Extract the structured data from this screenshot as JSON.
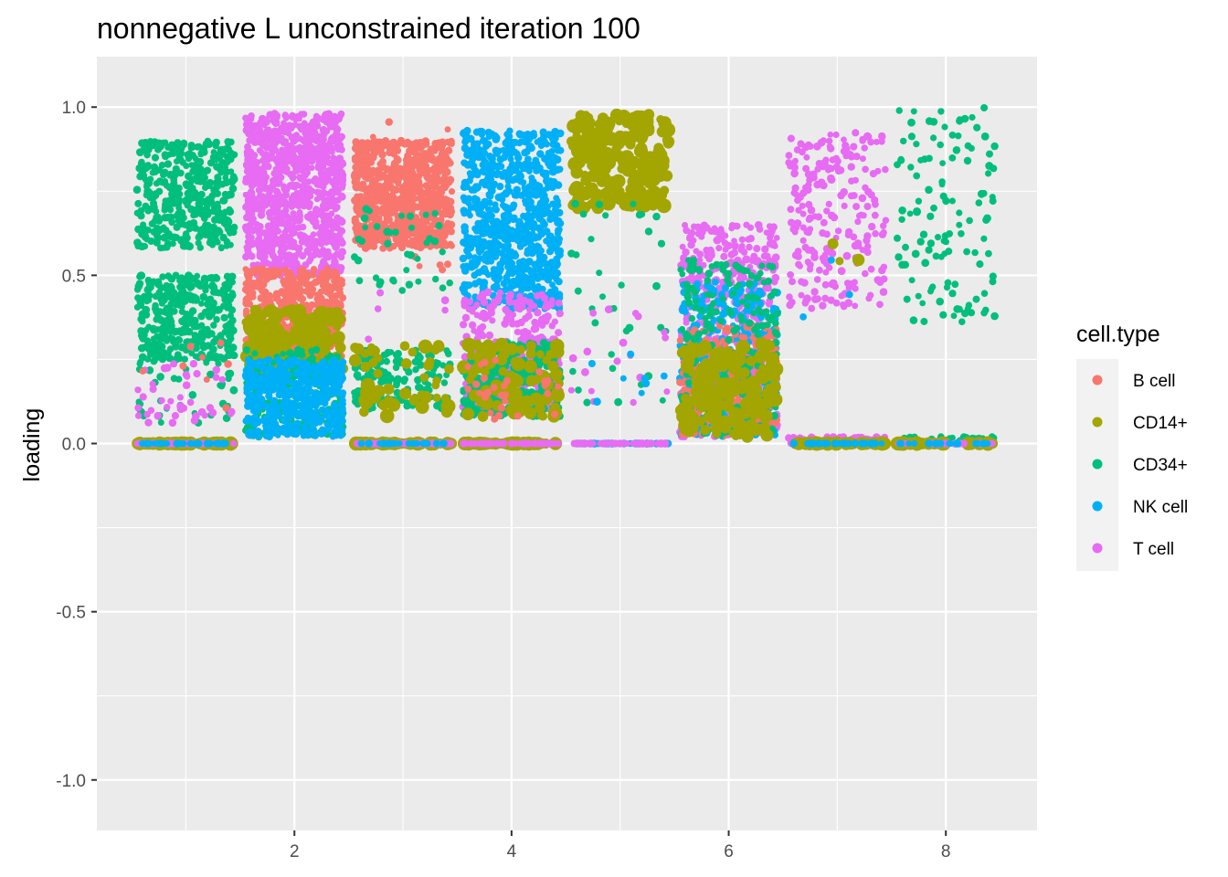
{
  "chart_data": {
    "type": "scatter",
    "title": "nonnegative L unconstrained iteration 100",
    "xlabel": "",
    "ylabel": "loading",
    "xlim": [
      0.18,
      8.84
    ],
    "ylim": [
      -1.15,
      1.15
    ],
    "x_ticks": [
      2,
      4,
      6,
      8
    ],
    "x_tick_labels": [
      "2",
      "4",
      "6",
      "8"
    ],
    "y_ticks": [
      -1.0,
      -0.5,
      0.0,
      0.5,
      1.0
    ],
    "y_tick_labels": [
      "-1.0",
      "-0.5",
      "0.0",
      "0.5",
      "1.0"
    ],
    "grid": true,
    "jitter_width": 0.9,
    "legend": {
      "title": "cell.type",
      "placement": "right",
      "entries": [
        "B cell",
        "CD14+",
        "CD34+",
        "NK cell",
        "T cell"
      ]
    },
    "series": [
      {
        "name": "B cell",
        "color": "#F8766D"
      },
      {
        "name": "CD14+",
        "color": "#A3A500"
      },
      {
        "name": "CD34+",
        "color": "#00BF7D"
      },
      {
        "name": "NK cell",
        "color": "#00B0F6"
      },
      {
        "name": "T cell",
        "color": "#E76BF3"
      }
    ],
    "clusters": [
      {
        "x": 1,
        "series": "CD34+",
        "n": 420,
        "ymin": 0.58,
        "ymax": 0.9
      },
      {
        "x": 1,
        "series": "CD34+",
        "n": 380,
        "ymin": 0.25,
        "ymax": 0.5
      },
      {
        "x": 1,
        "series": "CD34+",
        "n": 40,
        "ymin": 0.06,
        "ymax": 0.25
      },
      {
        "x": 1,
        "series": "T cell",
        "n": 40,
        "ymin": 0.06,
        "ymax": 0.25
      },
      {
        "x": 1,
        "series": "B cell",
        "n": 8,
        "ymin": 0.1,
        "ymax": 0.3
      },
      {
        "x": 1,
        "series": "CD14+",
        "n": 70,
        "ymin": 0.0,
        "ymax": 0.0
      },
      {
        "x": 1,
        "series": "T cell",
        "n": 60,
        "ymin": 0.0,
        "ymax": 0.0
      },
      {
        "x": 1,
        "series": "NK cell",
        "n": 30,
        "ymin": 0.0,
        "ymax": 0.0
      },
      {
        "x": 2,
        "series": "T cell",
        "n": 900,
        "ymin": 0.5,
        "ymax": 0.98
      },
      {
        "x": 2,
        "series": "B cell",
        "n": 500,
        "ymin": 0.25,
        "ymax": 0.52
      },
      {
        "x": 2,
        "series": "CD14+",
        "n": 180,
        "ymin": 0.2,
        "ymax": 0.4
      },
      {
        "x": 2,
        "series": "CD34+",
        "n": 250,
        "ymin": 0.02,
        "ymax": 0.28
      },
      {
        "x": 2,
        "series": "NK cell",
        "n": 450,
        "ymin": 0.02,
        "ymax": 0.25
      },
      {
        "x": 3,
        "series": "B cell",
        "n": 750,
        "ymin": 0.58,
        "ymax": 0.9
      },
      {
        "x": 3,
        "series": "B cell",
        "n": 30,
        "ymin": 0.5,
        "ymax": 0.98
      },
      {
        "x": 3,
        "series": "CD34+",
        "n": 40,
        "ymin": 0.45,
        "ymax": 0.7
      },
      {
        "x": 3,
        "series": "CD34+",
        "n": 160,
        "ymin": 0.1,
        "ymax": 0.28
      },
      {
        "x": 3,
        "series": "CD14+",
        "n": 50,
        "ymin": 0.08,
        "ymax": 0.3
      },
      {
        "x": 3,
        "series": "T cell",
        "n": 5,
        "ymin": 0.3,
        "ymax": 0.45
      },
      {
        "x": 3,
        "series": "CD14+",
        "n": 60,
        "ymin": 0.0,
        "ymax": 0.0
      },
      {
        "x": 3,
        "series": "T cell",
        "n": 60,
        "ymin": 0.0,
        "ymax": 0.0
      },
      {
        "x": 3,
        "series": "NK cell",
        "n": 30,
        "ymin": 0.0,
        "ymax": 0.0
      },
      {
        "x": 4,
        "series": "NK cell",
        "n": 800,
        "ymin": 0.4,
        "ymax": 0.93
      },
      {
        "x": 4,
        "series": "T cell",
        "n": 300,
        "ymin": 0.1,
        "ymax": 0.45
      },
      {
        "x": 4,
        "series": "CD34+",
        "n": 300,
        "ymin": 0.08,
        "ymax": 0.3
      },
      {
        "x": 4,
        "series": "CD14+",
        "n": 80,
        "ymin": 0.08,
        "ymax": 0.3
      },
      {
        "x": 4,
        "series": "B cell",
        "n": 30,
        "ymin": 0.06,
        "ymax": 0.25
      },
      {
        "x": 4,
        "series": "CD14+",
        "n": 60,
        "ymin": 0.0,
        "ymax": 0.0
      },
      {
        "x": 4,
        "series": "T cell",
        "n": 60,
        "ymin": 0.0,
        "ymax": 0.0
      },
      {
        "x": 5,
        "series": "CD14+",
        "n": 230,
        "ymin": 0.7,
        "ymax": 0.98
      },
      {
        "x": 5,
        "series": "CD34+",
        "n": 35,
        "ymin": 0.12,
        "ymax": 0.72
      },
      {
        "x": 5,
        "series": "T cell",
        "n": 18,
        "ymin": 0.12,
        "ymax": 0.4
      },
      {
        "x": 5,
        "series": "NK cell",
        "n": 8,
        "ymin": 0.1,
        "ymax": 0.3
      },
      {
        "x": 5,
        "series": "NK cell",
        "n": 50,
        "ymin": 0.0,
        "ymax": 0.0
      },
      {
        "x": 5,
        "series": "T cell",
        "n": 40,
        "ymin": 0.0,
        "ymax": 0.0
      },
      {
        "x": 6,
        "series": "T cell",
        "n": 500,
        "ymin": 0.02,
        "ymax": 0.65
      },
      {
        "x": 6,
        "series": "NK cell",
        "n": 350,
        "ymin": 0.02,
        "ymax": 0.48
      },
      {
        "x": 6,
        "series": "B cell",
        "n": 250,
        "ymin": 0.02,
        "ymax": 0.35
      },
      {
        "x": 6,
        "series": "CD34+",
        "n": 250,
        "ymin": 0.02,
        "ymax": 0.55
      },
      {
        "x": 6,
        "series": "CD14+",
        "n": 160,
        "ymin": 0.02,
        "ymax": 0.3
      },
      {
        "x": 7,
        "series": "T cell",
        "n": 230,
        "ymin": 0.4,
        "ymax": 0.93
      },
      {
        "x": 7,
        "series": "CD14+",
        "n": 3,
        "ymin": 0.5,
        "ymax": 0.6
      },
      {
        "x": 7,
        "series": "NK cell",
        "n": 3,
        "ymin": 0.33,
        "ymax": 0.6
      },
      {
        "x": 7,
        "series": "T cell",
        "n": 60,
        "ymin": 0.0,
        "ymax": 0.02
      },
      {
        "x": 7,
        "series": "CD14+",
        "n": 40,
        "ymin": 0.0,
        "ymax": 0.0
      },
      {
        "x": 7,
        "series": "NK cell",
        "n": 25,
        "ymin": 0.0,
        "ymax": 0.0
      },
      {
        "x": 8,
        "series": "CD34+",
        "n": 120,
        "ymin": 0.36,
        "ymax": 1.0
      },
      {
        "x": 8,
        "series": "CD34+",
        "n": 40,
        "ymin": 0.0,
        "ymax": 0.02
      },
      {
        "x": 8,
        "series": "CD14+",
        "n": 40,
        "ymin": 0.0,
        "ymax": 0.0
      },
      {
        "x": 8,
        "series": "T cell",
        "n": 30,
        "ymin": 0.0,
        "ymax": 0.0
      },
      {
        "x": 8,
        "series": "NK cell",
        "n": 20,
        "ymin": 0.0,
        "ymax": 0.0
      }
    ]
  }
}
